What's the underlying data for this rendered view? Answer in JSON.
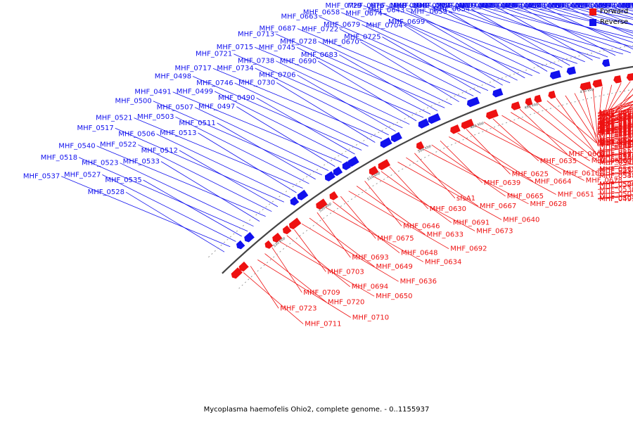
{
  "title": "Mycoplasma haemofelis Ohio2, complete genome. - 0..1155937",
  "legend": [
    {
      "label": "Forward",
      "color": "#ee1111"
    },
    {
      "label": "Reverse",
      "color": "#1111ee"
    }
  ],
  "ticks": [
    "380 kbp",
    "390 kbp",
    "400 kbp",
    "410 kbp",
    "420 kbp",
    "430 kbp",
    "440 kbp",
    "450 kbp",
    "460 kbp",
    "470 kbp",
    "480 kbp",
    "490 kbp",
    "500 kbp",
    "510 kbp",
    "520 kbp",
    "530 kbp"
  ],
  "colors": {
    "forward": "#ee1111",
    "reverse": "#1111ee",
    "backbone": "#555555"
  },
  "reverse_labels": [
    "MHF_0543",
    "MHF_0532",
    "MHF_0519",
    "MHF_0510",
    "MHF_0524",
    "MHF_0514",
    "MHF_0539",
    "MHF_0529",
    "MHF_0520",
    "MHF_0544",
    "MHF_0534",
    "MHF_0525",
    "MHF_0542",
    "MHF_0531",
    "MHF_0536",
    "MHF_0574",
    "MHF_0572",
    "MHF_0594",
    "MHF_0571",
    "MHF_0557",
    "MHF_0541",
    "MHF_0591",
    "MHF_0570",
    "MHF_0556",
    "MHF_0546",
    "MHF_0590",
    "MHF_0568",
    "MHF_0549",
    "MHF_0585",
    "MHF_0564",
    "MHF_0584",
    "MHF_0569",
    "MHF_0558",
    "MHF_0596",
    "MHF_0583",
    "MHF_0566",
    "MHF_0705",
    "MHF_0589",
    "MHF_0573",
    "MHF_0702",
    "MHF_0588",
    "MHF_0575",
    "MHF_0701",
    "MHF_0587",
    "MHF_0697",
    "MHF_0592",
    "MHF_0689",
    "MHF_0686",
    "MHF_0666",
    "MHF_0597",
    "MHF_0685",
    "MHF_0661",
    "MHF_0617",
    "MHF_0603",
    "MHF_0684",
    "MHF_0657",
    "MHF_0682",
    "MHF_0656",
    "MHF_0614",
    "MHF_0681",
    "MHF_0655",
    "MHF_0637",
    "MHF_0619",
    "MHF_0688",
    "MHF_0668",
    "MHF_0652",
    "MHF_0680",
    "MHF_0660",
    "MHF_0642",
    "MHF_0622",
    "MHF_0700",
    "MHF_0669",
    "MHF_0654",
    "MHF_0638",
    "MHF_0676",
    "MHF_0659",
    "MHF_0643",
    "MHF_0729",
    "MHF_0699",
    "MHF_0674",
    "MHF_0658",
    "MHF_0704",
    "MHF_0679",
    "MHF_0663",
    "MHF_0725",
    "MHF_0722",
    "MHF_0687",
    "MHF_0670",
    "MHF_0728",
    "MHF_0713",
    "MHF_0683",
    "MHF_0745",
    "MHF_0715",
    "MHF_0690",
    "MHF_0738",
    "MHF_0721",
    "MHF_0706",
    "MHF_0734",
    "MHF_0717",
    "MHF_0730",
    "MHF_0746",
    "MHF_0498",
    "MHF_0490",
    "MHF_0499",
    "MHF_0491",
    "MHF_0497",
    "MHF_0507",
    "MHF_0500",
    "MHF_0511",
    "MHF_0503",
    "MHF_0521",
    "MHF_0513",
    "MHF_0506",
    "MHF_0517",
    "MHF_0512",
    "MHF_0522",
    "MHF_0540",
    "MHF_0533",
    "MHF_0523",
    "MHF_0518",
    "MHF_0535",
    "MHF_0527",
    "MHF_0537",
    "MHF_0528"
  ],
  "forward_labels": [
    "MHF_0501",
    "MHF_0493",
    "MHF_0504",
    "MHF_0509",
    "MHF_0526",
    "MHF_0530",
    "MHF_0515",
    "MHF_0547",
    "MHF_0538",
    "MHF_0545",
    "MHF_0548",
    "MHF_0567",
    "MHF_0559",
    "MHF_0550",
    "MHF_0560",
    "MHF_0551",
    "MHF_0561",
    "MHF_0552",
    "MHF_0562",
    "MHF_0553",
    "MHF_0586",
    "MHF_0576",
    "MHF_0563",
    "MHF_0554",
    "MHF_0577",
    "MHF_0565",
    "MHF_0555",
    "MHF_0578",
    "MHF_0579",
    "MHF_0593",
    "MHF_0580",
    "MHF_0595",
    "MHF_0581",
    "MHF_0598",
    "MHF_0582",
    "MHF_0599",
    "MHF_0600",
    "MHF_0611",
    "MHF_0601",
    "MHF_0612",
    "MHF_0602",
    "MHF_0613",
    "MHF_0624",
    "MHF_0604",
    "MHF_0615",
    "MHF_0626",
    "MHF_0605",
    "MHF_0616",
    "MHF_0627",
    "MHF_0653",
    "MHF_0606",
    "MHF_0641",
    "MHF_0618",
    "MHF_0629",
    "MHF_0607",
    "MHF_0620",
    "MHF_0644",
    "MHF_0631",
    "MHF_0608",
    "MHF_0621",
    "MHF_0645",
    "MHF_0632",
    "MHF_0609",
    "MHF_0662",
    "MHF_0623",
    "MHF_0647",
    "MHF_0635",
    "MHF_0610",
    "MHF_0678",
    "MHF_0625",
    "MHF_0664",
    "MHF_0651",
    "MHF_0639",
    "MHF_0665",
    "MHF_0628",
    "sfsA1",
    "MHF_0667",
    "MHF_0640",
    "MHF_0630",
    "MHF_0691",
    "MHF_0673",
    "MHF_0646",
    "MHF_0633",
    "MHF_0692",
    "MHF_0675",
    "MHF_0648",
    "MHF_0634",
    "MHF_0693",
    "MHF_0649",
    "MHF_0636",
    "MHF_0703",
    "MHF_0694",
    "MHF_0650",
    "MHF_0709",
    "MHF_0720",
    "MHF_0710",
    "MHF_0723",
    "MHF_0711"
  ]
}
